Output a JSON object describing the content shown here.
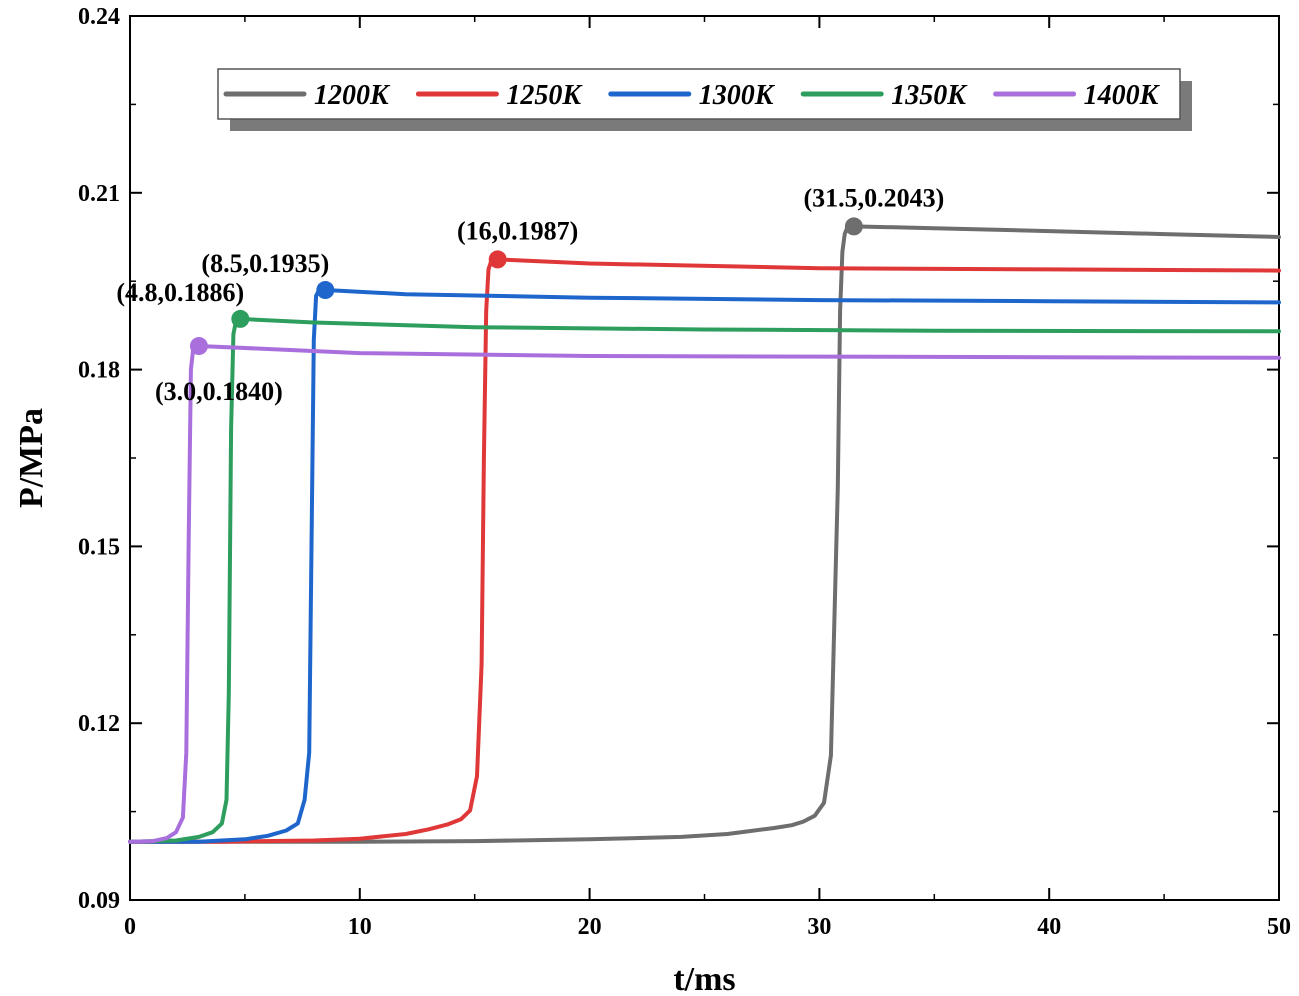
{
  "chart_data": {
    "type": "line",
    "title": "",
    "xlabel": "t/ms",
    "ylabel": "P/MPa",
    "xlim": [
      0,
      50
    ],
    "ylim": [
      0.09,
      0.24
    ],
    "xticks": [
      0,
      10,
      20,
      30,
      40,
      50
    ],
    "xtick_labels": [
      "0",
      "10",
      "20",
      "30",
      "40",
      "50"
    ],
    "yticks": [
      0.09,
      0.12,
      0.15,
      0.18,
      0.21,
      0.24
    ],
    "ytick_labels": [
      "0.09",
      "0.12",
      "0.15",
      "0.18",
      "0.21",
      "0.24"
    ],
    "grid": false,
    "legend_position": "top",
    "series": [
      {
        "name": "1200K",
        "color": "#6e6e6e",
        "x": [
          0,
          5,
          10,
          15,
          20,
          24,
          26,
          27,
          28,
          28.8,
          29.3,
          29.8,
          30.2,
          30.5,
          30.8,
          30.9,
          31.0,
          31.1,
          31.2,
          31.5,
          35,
          40,
          45,
          50
        ],
        "y": [
          0.0999,
          0.0999,
          0.0999,
          0.1,
          0.1003,
          0.1007,
          0.1012,
          0.1017,
          0.1022,
          0.1027,
          0.1033,
          0.1043,
          0.1065,
          0.1145,
          0.16,
          0.19,
          0.2,
          0.203,
          0.204,
          0.2043,
          0.204,
          0.2035,
          0.203,
          0.2025
        ]
      },
      {
        "name": "1250K",
        "color": "#e03838",
        "x": [
          0,
          4,
          8,
          10,
          12,
          13,
          13.8,
          14.4,
          14.8,
          15.1,
          15.3,
          15.4,
          15.5,
          15.6,
          15.7,
          16.0,
          20,
          30,
          40,
          50
        ],
        "y": [
          0.0999,
          0.0999,
          0.1001,
          0.1004,
          0.1012,
          0.102,
          0.1028,
          0.1037,
          0.1052,
          0.111,
          0.13,
          0.165,
          0.19,
          0.197,
          0.1982,
          0.1987,
          0.198,
          0.1972,
          0.197,
          0.1968
        ]
      },
      {
        "name": "1300K",
        "color": "#1f66cc",
        "x": [
          0,
          3,
          5,
          6,
          6.8,
          7.3,
          7.6,
          7.8,
          7.9,
          8.0,
          8.1,
          8.2,
          8.5,
          12,
          20,
          30,
          40,
          50
        ],
        "y": [
          0.0999,
          0.0999,
          0.1003,
          0.1009,
          0.1018,
          0.103,
          0.107,
          0.115,
          0.15,
          0.185,
          0.1925,
          0.1933,
          0.1935,
          0.1928,
          0.1922,
          0.1918,
          0.1916,
          0.1914
        ]
      },
      {
        "name": "1350K",
        "color": "#2e9e5e",
        "x": [
          0,
          2,
          3,
          3.6,
          4.0,
          4.2,
          4.3,
          4.4,
          4.5,
          4.6,
          4.8,
          8,
          15,
          25,
          35,
          50
        ],
        "y": [
          0.0999,
          0.1001,
          0.1007,
          0.1015,
          0.103,
          0.107,
          0.125,
          0.17,
          0.186,
          0.188,
          0.1886,
          0.188,
          0.1872,
          0.1868,
          0.1866,
          0.1865
        ]
      },
      {
        "name": "1400K",
        "color": "#a970dd",
        "x": [
          0,
          1,
          1.6,
          2.0,
          2.3,
          2.45,
          2.55,
          2.65,
          2.75,
          3.0,
          6,
          10,
          20,
          30,
          40,
          50
        ],
        "y": [
          0.0999,
          0.1,
          0.1005,
          0.1015,
          0.104,
          0.115,
          0.15,
          0.18,
          0.1835,
          0.184,
          0.1835,
          0.1828,
          0.1823,
          0.1822,
          0.1821,
          0.182
        ]
      }
    ],
    "peaks": [
      {
        "series": "1200K",
        "x": 31.5,
        "y": 0.2043,
        "label": "(31.5,0.2043)",
        "anchor": "above"
      },
      {
        "series": "1250K",
        "x": 16,
        "y": 0.1987,
        "label": "(16,0.1987)",
        "anchor": "above"
      },
      {
        "series": "1300K",
        "x": 8.5,
        "y": 0.1935,
        "label": "(8.5,0.1935)",
        "anchor": "above-left"
      },
      {
        "series": "1350K",
        "x": 4.8,
        "y": 0.1886,
        "label": "(4.8,0.1886)",
        "anchor": "above-left"
      },
      {
        "series": "1400K",
        "x": 3.0,
        "y": 0.184,
        "label": "(3.0,0.1840)",
        "anchor": "below"
      }
    ]
  }
}
